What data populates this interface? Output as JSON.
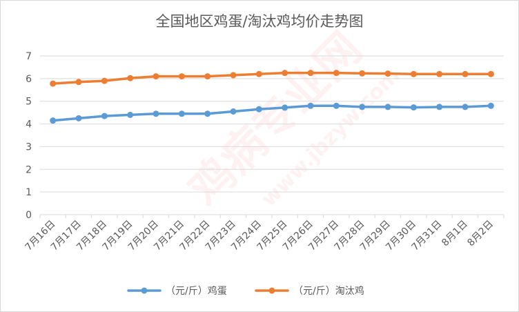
{
  "chart_data": {
    "type": "line",
    "title": "全国地区鸡蛋/淘汰鸡均价走势图",
    "categories": [
      "7月16日",
      "7月17日",
      "7月18日",
      "7月19日",
      "7月20日",
      "7月21日",
      "7月22日",
      "7月23日",
      "7月24日",
      "7月25日",
      "7月26日",
      "7月27日",
      "7月28日",
      "7月29日",
      "7月30日",
      "7月31日",
      "8月1日",
      "8月2日"
    ],
    "ylim": [
      0,
      7
    ],
    "yticks": [
      0,
      1,
      2,
      3,
      4,
      5,
      6,
      7
    ],
    "grid": true,
    "legend_position": "bottom",
    "series": [
      {
        "name": "（元/斤）鸡蛋",
        "color": "#5b9bd5",
        "values": [
          4.15,
          4.25,
          4.35,
          4.4,
          4.45,
          4.45,
          4.45,
          4.55,
          4.65,
          4.72,
          4.8,
          4.8,
          4.75,
          4.75,
          4.73,
          4.75,
          4.75,
          4.8
        ]
      },
      {
        "name": "（元/斤）淘汰鸡",
        "color": "#ed7d31",
        "values": [
          5.78,
          5.85,
          5.9,
          6.02,
          6.1,
          6.1,
          6.1,
          6.15,
          6.2,
          6.25,
          6.25,
          6.25,
          6.23,
          6.22,
          6.2,
          6.2,
          6.2,
          6.2
        ]
      }
    ]
  },
  "watermark": {
    "text_main": "鸡病专业网",
    "text_url": "www.jbzyw.com"
  }
}
